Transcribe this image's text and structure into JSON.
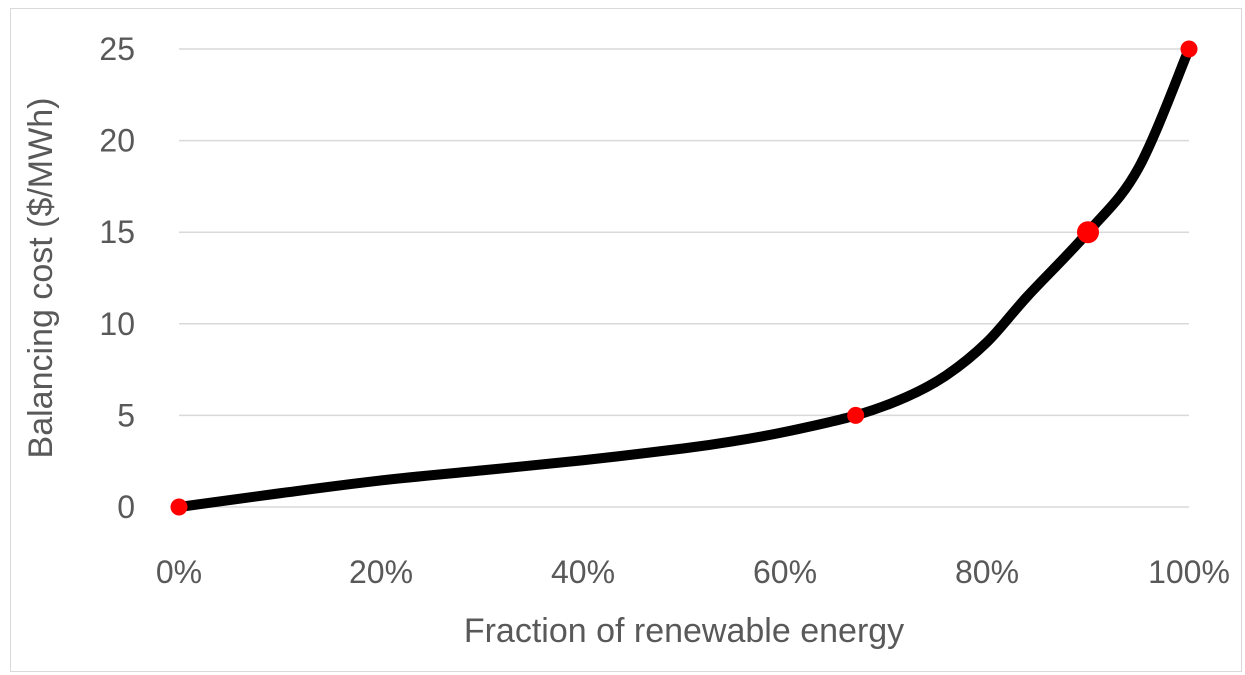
{
  "chart_data": {
    "type": "line",
    "title": "",
    "xlabel": "Fraction of renewable energy",
    "ylabel": "Balancing cost ($/MWh)",
    "xlim": [
      0,
      1
    ],
    "ylim": [
      0,
      25
    ],
    "x_ticks": [
      "0%",
      "20%",
      "40%",
      "60%",
      "80%",
      "100%"
    ],
    "y_ticks": [
      "0",
      "5",
      "10",
      "15",
      "20",
      "25"
    ],
    "grid": "horizontal",
    "legend": "none",
    "series": [
      {
        "x": [
          0,
          0.1,
          0.2,
          0.3,
          0.4,
          0.5,
          0.55,
          0.6,
          0.67,
          0.72,
          0.76,
          0.8,
          0.84,
          0.9,
          0.95,
          1.0
        ],
        "y": [
          0,
          0.75,
          1.45,
          2.0,
          2.55,
          3.2,
          3.6,
          4.1,
          5.0,
          6.0,
          7.2,
          9.0,
          11.5,
          15.0,
          18.5,
          25.0
        ],
        "color": "#000000"
      }
    ],
    "markers": {
      "x": [
        0,
        0.67,
        0.9,
        1.0
      ],
      "y": [
        0,
        5,
        15,
        25
      ],
      "color": "#ff0000"
    }
  }
}
